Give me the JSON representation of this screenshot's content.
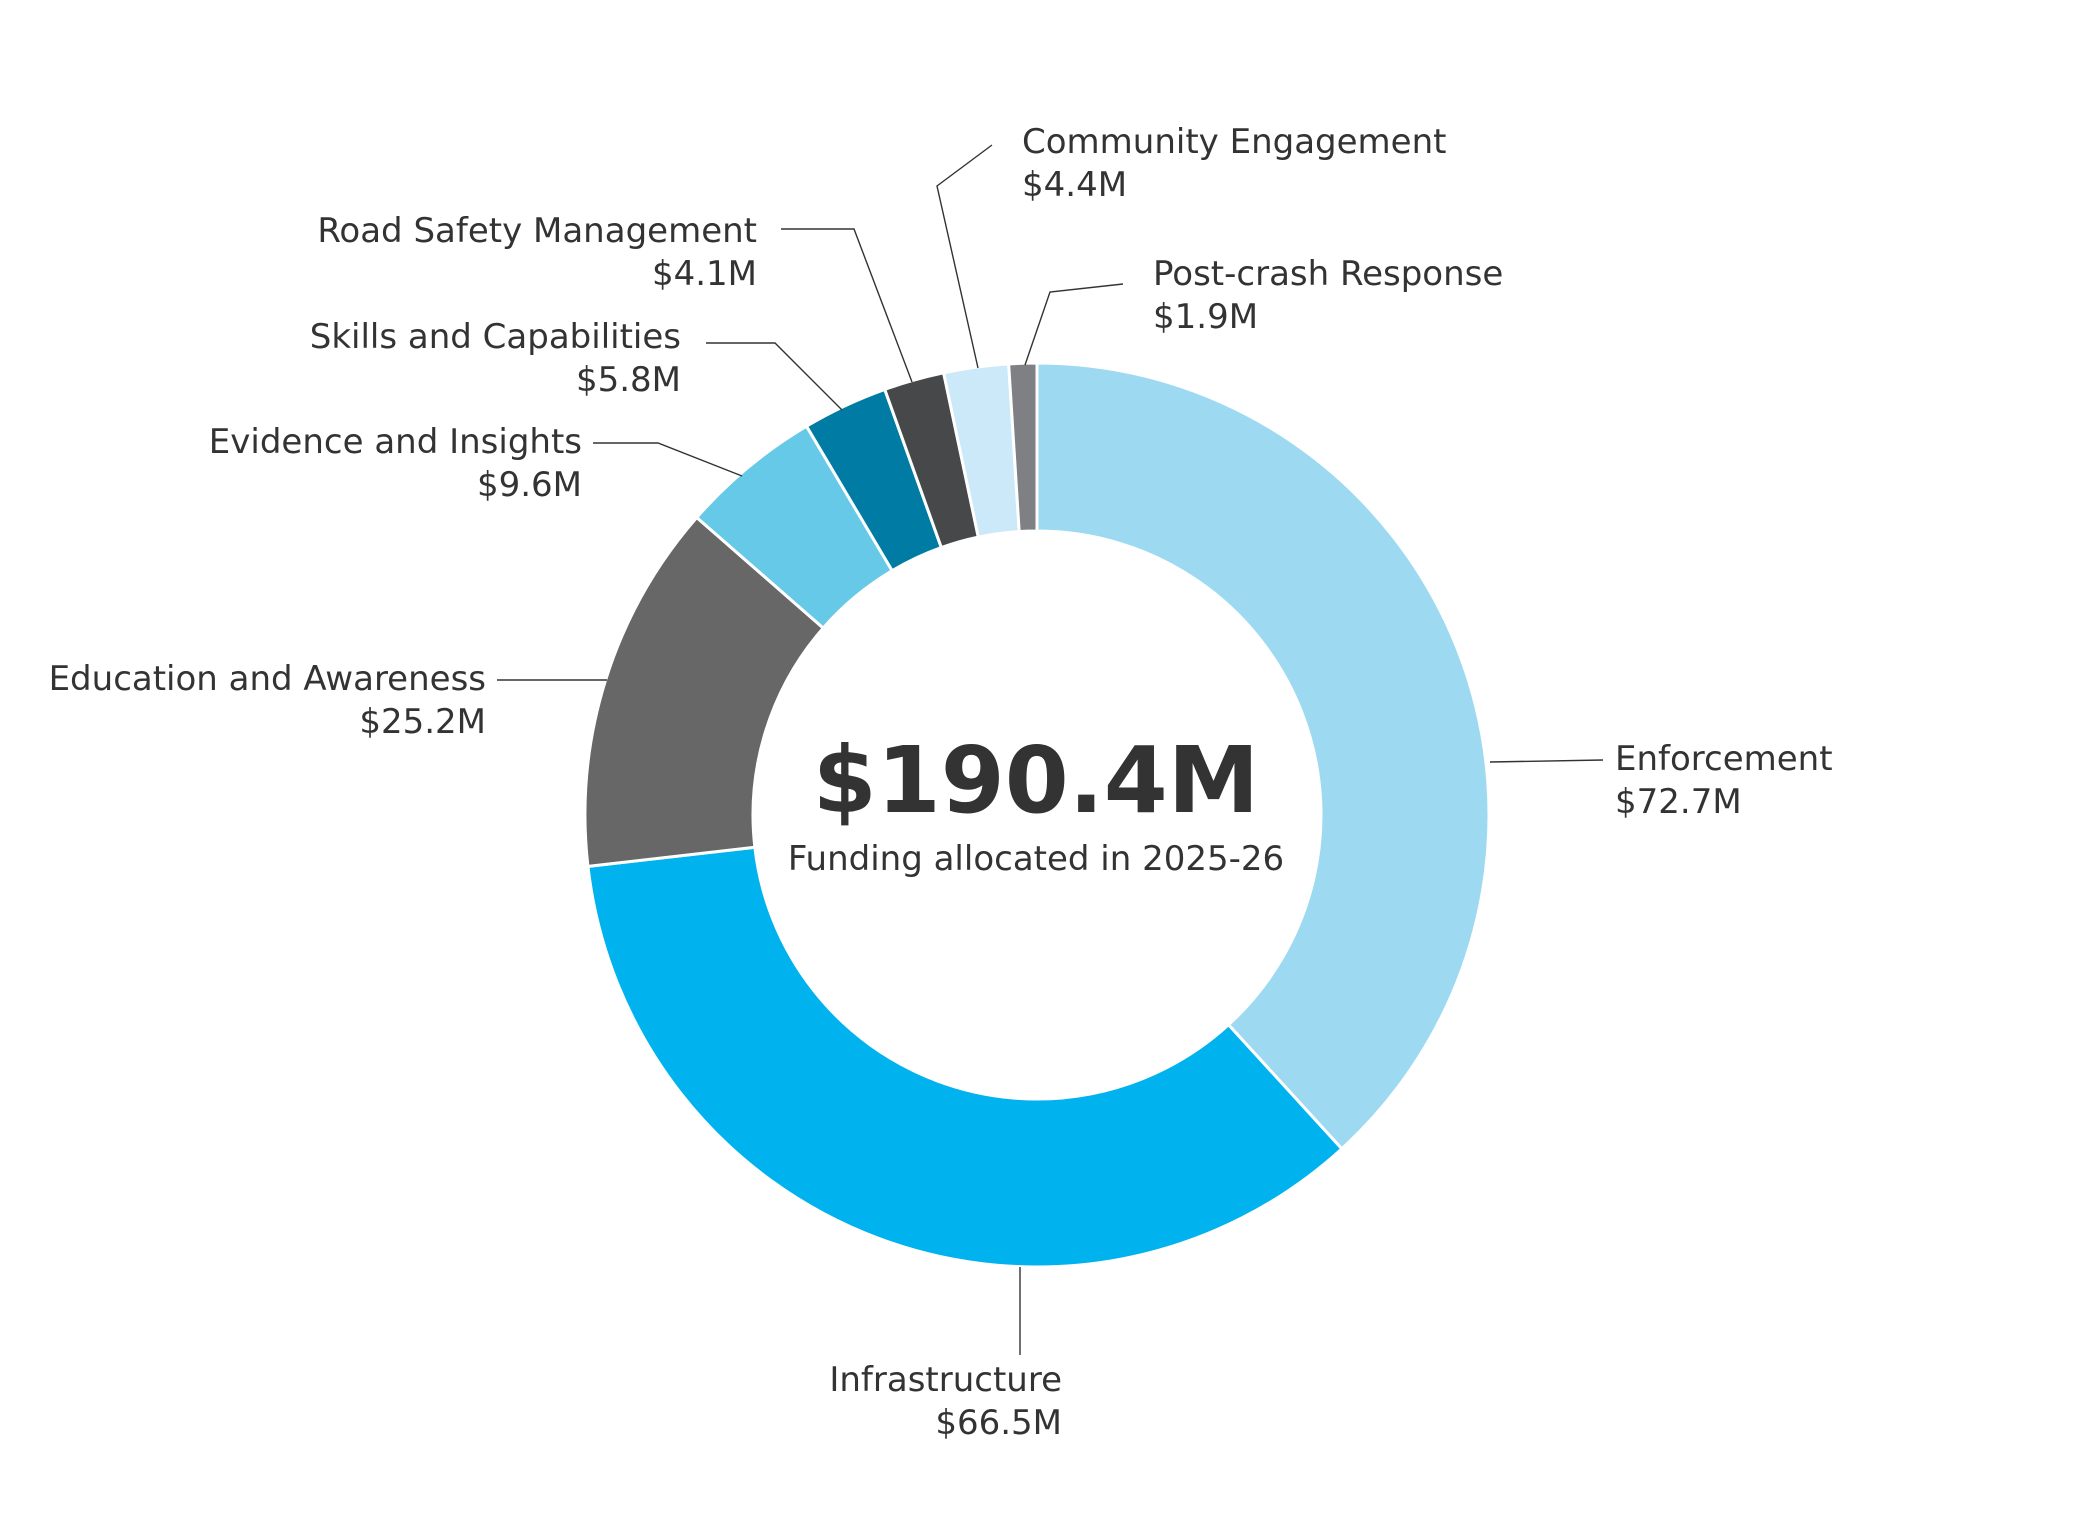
{
  "chart_data": {
    "type": "pie",
    "center": {
      "value": "$190.4M",
      "caption": "Funding allocated in 2025-26"
    },
    "slices": [
      {
        "name": "Enforcement",
        "value": 72.7,
        "value_label": "$72.7M",
        "color": "#9DDAF2"
      },
      {
        "name": "Infrastructure",
        "value": 66.5,
        "value_label": "$66.5M",
        "color": "#00B3EE"
      },
      {
        "name": "Education and Awareness",
        "value": 25.2,
        "value_label": "$25.2M",
        "color": "#676767"
      },
      {
        "name": "Evidence and Insights",
        "value": 9.6,
        "value_label": "$9.6M",
        "color": "#65C9E7"
      },
      {
        "name": "Skills and Capabilities",
        "value": 5.8,
        "value_label": "$5.8M",
        "color": "#007BA3"
      },
      {
        "name": "Road Safety Management",
        "value": 4.1,
        "value_label": "$4.1M",
        "color": "#47484A"
      },
      {
        "name": "Community Engagement",
        "value": 4.4,
        "value_label": "$4.4M",
        "color": "#CBE9F8"
      },
      {
        "name": "Post-crash Response",
        "value": 1.9,
        "value_label": "$1.9M",
        "color": "#7E8084"
      }
    ]
  }
}
